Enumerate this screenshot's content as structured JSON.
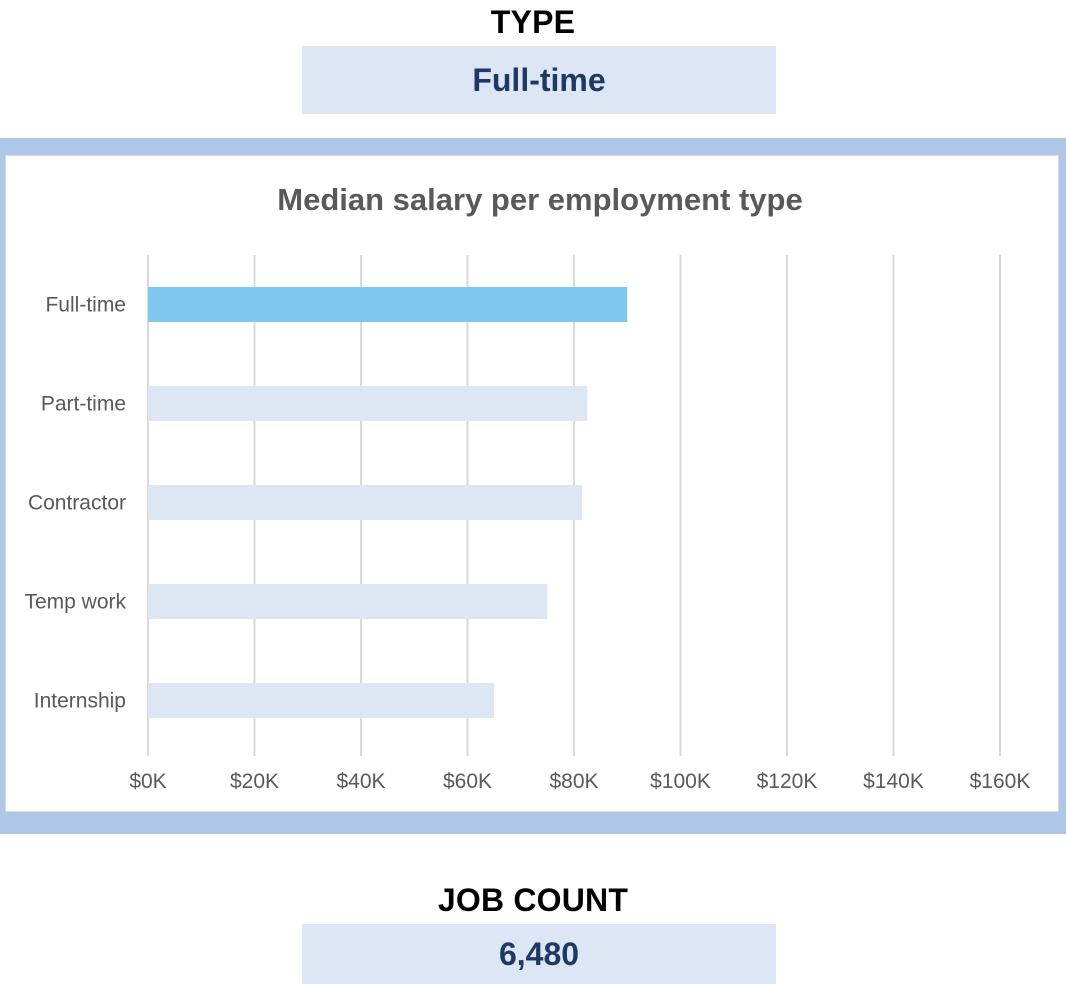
{
  "filter": {
    "label": "TYPE",
    "value": "Full-time"
  },
  "job_count": {
    "label": "JOB COUNT",
    "value": "6,480"
  },
  "colors": {
    "highlight_bar": "#7ec8ef",
    "other_bar": "#dde7f4",
    "frame": "#aec7e6",
    "value_box": "#dce6f4",
    "value_text": "#1f3864"
  },
  "chart_data": {
    "type": "bar",
    "orientation": "horizontal",
    "title": "Median salary per employment type",
    "categories": [
      "Full-time",
      "Part-time",
      "Contractor",
      "Temp work",
      "Internship"
    ],
    "values": [
      90000,
      82500,
      81500,
      75000,
      65000
    ],
    "highlighted": "Full-time",
    "xlim": [
      0,
      160000
    ],
    "x_ticks": [
      0,
      20000,
      40000,
      60000,
      80000,
      100000,
      120000,
      140000,
      160000
    ],
    "x_tick_labels": [
      "$0K",
      "$20K",
      "$40K",
      "$60K",
      "$80K",
      "$100K",
      "$120K",
      "$140K",
      "$160K"
    ],
    "xlabel": "",
    "ylabel": "",
    "grid": true,
    "legend": "none"
  }
}
